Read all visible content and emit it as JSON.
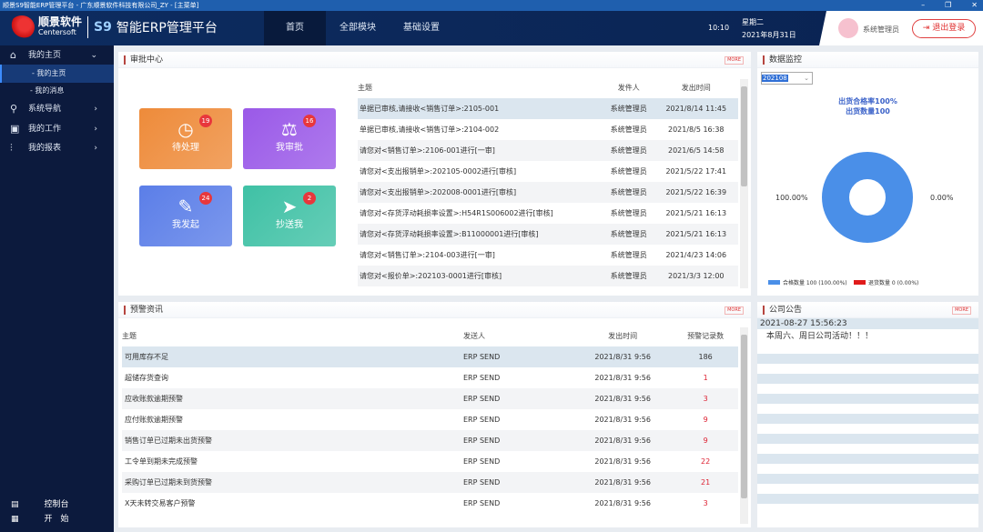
{
  "window": {
    "title": "顺景S9智能ERP管理平台 - 广东顺景软件科技有限公司_ZY - [主菜单]",
    "controls": [
      "–",
      "❐",
      "✕"
    ]
  },
  "header": {
    "brand": "顺景软件",
    "brand_en": "Centersoft",
    "product": "S9",
    "platform": "智能ERP管理平台",
    "nav": [
      {
        "label": "首页",
        "active": true
      },
      {
        "label": "全部模块"
      },
      {
        "label": "基础设置"
      }
    ],
    "time": "10:10",
    "weekday": "星期二",
    "date": "2021年8月31日",
    "user": "系统管理员",
    "logout": "退出登录"
  },
  "sidebar": {
    "items": [
      {
        "label": "我的主页",
        "icon": "home-icon",
        "expanded": true
      },
      {
        "label": "系统导航",
        "icon": "compass-icon"
      },
      {
        "label": "我的工作",
        "icon": "briefcase-icon"
      },
      {
        "label": "我的报表",
        "icon": "chart-icon"
      }
    ],
    "subitems": [
      {
        "label": "- 我的主页",
        "active": true
      },
      {
        "label": "- 我的消息"
      }
    ],
    "footer": [
      {
        "label": "控制台",
        "icon": "console-icon"
      },
      {
        "label": "开　始",
        "icon": "start-icon"
      }
    ]
  },
  "approval": {
    "title": "审批中心",
    "more": "MORE",
    "cards": [
      {
        "label": "待处理",
        "count": "19",
        "color": "#ee8b3a",
        "icon": "pending-icon"
      },
      {
        "label": "我审批",
        "count": "16",
        "color": "#9a59e8",
        "icon": "stamp-icon"
      },
      {
        "label": "我发起",
        "count": "24",
        "color": "#5b7ee8",
        "icon": "edit-icon"
      },
      {
        "label": "抄送我",
        "count": "2",
        "color": "#3fc1a5",
        "icon": "send-icon"
      }
    ],
    "columns": [
      "主题",
      "发件人",
      "发出时间"
    ],
    "rows": [
      [
        "单据已审核,请接收<销售订单>:2105-001",
        "系统管理员",
        "2021/8/14 11:45"
      ],
      [
        "单据已审核,请接收<销售订单>:2104-002",
        "系统管理员",
        "2021/8/5 16:38"
      ],
      [
        "请您对<销售订单>:2106-001进行[一审]",
        "系统管理员",
        "2021/6/5 14:58"
      ],
      [
        "请您对<支出报销单>:202105-0002进行[审核]",
        "系统管理员",
        "2021/5/22 17:41"
      ],
      [
        "请您对<支出报销单>:202008-0001进行[审核]",
        "系统管理员",
        "2021/5/22 16:39"
      ],
      [
        "请您对<存货浮动耗损率设置>:H54R1S006002进行[审核]",
        "系统管理员",
        "2021/5/21 16:13"
      ],
      [
        "请您对<存货浮动耗损率设置>:B11000001进行[审核]",
        "系统管理员",
        "2021/5/21 16:13"
      ],
      [
        "请您对<销售订单>:2104-003进行[一审]",
        "系统管理员",
        "2021/4/23 14:06"
      ],
      [
        "请您对<报价单>:202103-0001进行[审核]",
        "系统管理员",
        "2021/3/3 12:00"
      ]
    ]
  },
  "monitor": {
    "title": "数据监控",
    "period": "202108",
    "line1": "出货合格率100%",
    "line2": "出货数量100",
    "chart_data": {
      "type": "pie",
      "donut": true,
      "slices": [
        {
          "name": "合格数量",
          "value": 100,
          "percent": "100.00%",
          "color": "#4a8fe8"
        },
        {
          "name": "退货数量",
          "value": 0,
          "percent": "0.00%",
          "color": "#e01b1b"
        }
      ],
      "labels": [
        "100.00%",
        "0.00%"
      ],
      "legend": [
        "合格数量 100 (100.00%)",
        "退货数量 0 (0.00%)"
      ],
      "legend_position": "bottom"
    }
  },
  "warning": {
    "title": "预警资讯",
    "more": "MORE",
    "columns": [
      "主题",
      "发送人",
      "发出时间",
      "预警记录数"
    ],
    "rows": [
      [
        "可用库存不足",
        "ERP SEND",
        "2021/8/31 9:56",
        "186"
      ],
      [
        "超储存货查询",
        "ERP SEND",
        "2021/8/31 9:56",
        "1"
      ],
      [
        "应收账款逾期预警",
        "ERP SEND",
        "2021/8/31 9:56",
        "3"
      ],
      [
        "应付账款逾期预警",
        "ERP SEND",
        "2021/8/31 9:56",
        "9"
      ],
      [
        "销售订单已过期未出货预警",
        "ERP SEND",
        "2021/8/31 9:56",
        "9"
      ],
      [
        "工令单到期未完成预警",
        "ERP SEND",
        "2021/8/31 9:56",
        "22"
      ],
      [
        "采购订单已过期未到货预警",
        "ERP SEND",
        "2021/8/31 9:56",
        "21"
      ],
      [
        "X天未转交易客户预警",
        "ERP SEND",
        "2021/8/31 9:56",
        "3"
      ]
    ]
  },
  "notice": {
    "title": "公司公告",
    "more": "MORE",
    "time": "2021-08-27 15:56:23",
    "text": "本周六、周日公司活动！！！"
  }
}
